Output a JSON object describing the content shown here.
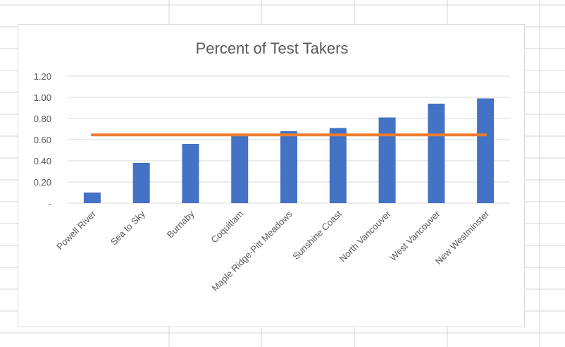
{
  "chart_data": {
    "type": "bar",
    "title": "Percent of Test Takers",
    "categories": [
      "Powell River",
      "Sea to Sky",
      "Burnaby",
      "Coquitlam",
      "Maple Ridge-Pitt Meadows",
      "Sunshine Coast",
      "North Vancouver",
      "West Vancouver",
      "New Westminster"
    ],
    "series": [
      {
        "values": [
          0.1,
          0.38,
          0.56,
          0.64,
          0.68,
          0.71,
          0.81,
          0.94,
          0.99
        ],
        "color": "#4472c4"
      }
    ],
    "reference_line": {
      "value": 0.645,
      "color": "#ed7d31"
    },
    "ylim": [
      0,
      1.2
    ],
    "yticks": [
      0,
      0.2,
      0.4,
      0.6,
      0.8,
      1.0,
      1.2
    ],
    "ytick_labels": [
      "-",
      "0.20",
      "0.40",
      "0.60",
      "0.80",
      "1.00",
      "1.20"
    ],
    "gridlines": true,
    "legend": "none",
    "xlabel": "",
    "ylabel": ""
  }
}
